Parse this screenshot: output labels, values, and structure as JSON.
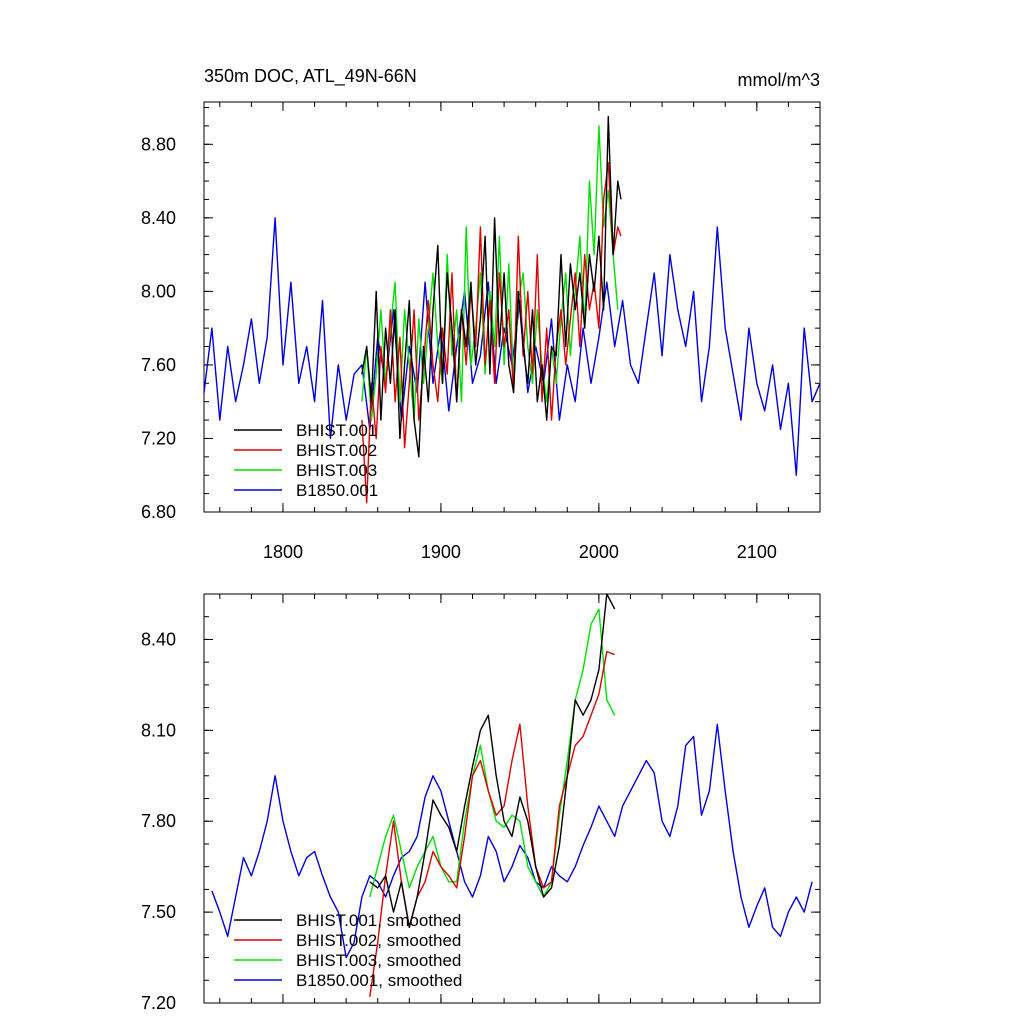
{
  "chart_data": [
    {
      "type": "line",
      "title": "350m DOC, ATL_49N-66N",
      "units": "mmol/m^3",
      "xlim": [
        1750,
        2140
      ],
      "ylim": [
        6.8,
        9.03
      ],
      "xticks": [
        1800,
        1900,
        2000,
        2100
      ],
      "xticklabels": [
        "1800",
        "1900",
        "2000",
        "2100"
      ],
      "yticks": [
        6.8,
        7.2,
        7.6,
        8.0,
        8.4,
        8.8
      ],
      "yticklabels": [
        "6.80",
        "7.20",
        "7.60",
        "8.00",
        "8.40",
        "8.80"
      ],
      "legend_position": "bottom-left",
      "series": [
        {
          "name": "BHIST.001",
          "color": "#000000",
          "x": [
            1850,
            1853,
            1856,
            1859,
            1862,
            1865,
            1868,
            1871,
            1874,
            1877,
            1880,
            1883,
            1886,
            1889,
            1892,
            1895,
            1898,
            1901,
            1904,
            1907,
            1910,
            1913,
            1916,
            1919,
            1922,
            1925,
            1928,
            1931,
            1934,
            1937,
            1940,
            1943,
            1946,
            1949,
            1952,
            1955,
            1958,
            1961,
            1964,
            1967,
            1970,
            1973,
            1976,
            1979,
            1982,
            1985,
            1988,
            1991,
            1994,
            1997,
            2000,
            2003,
            2006,
            2009,
            2012,
            2014
          ],
          "y": [
            7.55,
            7.7,
            7.4,
            8.0,
            7.3,
            7.8,
            7.5,
            7.9,
            7.2,
            7.6,
            7.95,
            7.3,
            7.1,
            7.7,
            7.4,
            7.9,
            8.25,
            7.5,
            8.1,
            7.8,
            7.4,
            7.9,
            7.7,
            8.05,
            7.6,
            7.85,
            8.3,
            7.55,
            8.4,
            7.7,
            8.1,
            7.6,
            7.45,
            8.0,
            7.7,
            7.5,
            7.9,
            7.4,
            7.6,
            7.3,
            7.7,
            7.65,
            8.2,
            7.7,
            8.15,
            7.9,
            8.1,
            7.8,
            8.2,
            8.0,
            8.3,
            7.9,
            8.95,
            8.2,
            8.6,
            8.5
          ]
        },
        {
          "name": "BHIST.002",
          "color": "#e00000",
          "x": [
            1850,
            1853,
            1856,
            1859,
            1862,
            1865,
            1868,
            1871,
            1874,
            1877,
            1880,
            1883,
            1886,
            1889,
            1892,
            1895,
            1898,
            1901,
            1904,
            1907,
            1910,
            1913,
            1916,
            1919,
            1922,
            1925,
            1928,
            1931,
            1934,
            1937,
            1940,
            1943,
            1946,
            1949,
            1952,
            1955,
            1958,
            1961,
            1964,
            1967,
            1970,
            1973,
            1976,
            1979,
            1982,
            1985,
            1988,
            1991,
            1994,
            1997,
            2000,
            2003,
            2006,
            2009,
            2012,
            2014
          ],
          "y": [
            7.3,
            6.85,
            7.5,
            7.2,
            7.7,
            7.45,
            7.9,
            7.4,
            7.75,
            7.15,
            7.5,
            7.9,
            7.3,
            7.6,
            7.95,
            7.6,
            7.4,
            7.8,
            7.55,
            8.1,
            7.4,
            7.9,
            7.6,
            8.0,
            7.7,
            8.35,
            7.6,
            7.95,
            7.5,
            8.1,
            7.7,
            7.9,
            7.45,
            8.3,
            7.65,
            8.0,
            7.55,
            8.2,
            7.4,
            7.8,
            7.3,
            7.7,
            7.9,
            7.6,
            7.85,
            8.1,
            7.7,
            8.2,
            7.9,
            8.05,
            7.8,
            8.5,
            8.7,
            8.2,
            8.35,
            8.3
          ]
        },
        {
          "name": "BHIST.003",
          "color": "#00e000",
          "x": [
            1850,
            1853,
            1856,
            1859,
            1862,
            1865,
            1868,
            1871,
            1874,
            1877,
            1880,
            1883,
            1886,
            1889,
            1892,
            1895,
            1898,
            1901,
            1904,
            1907,
            1910,
            1913,
            1916,
            1919,
            1922,
            1925,
            1928,
            1931,
            1934,
            1937,
            1940,
            1943,
            1946,
            1949,
            1952,
            1955,
            1958,
            1961,
            1964,
            1967,
            1970,
            1973,
            1976,
            1979,
            1982,
            1985,
            1988,
            1991,
            1994,
            1997,
            2000,
            2003,
            2006,
            2009,
            2012
          ],
          "y": [
            7.4,
            7.7,
            7.3,
            7.55,
            7.9,
            7.5,
            7.8,
            8.05,
            7.4,
            7.9,
            7.6,
            7.3,
            7.85,
            7.5,
            7.8,
            8.1,
            7.7,
            7.5,
            8.2,
            7.65,
            7.9,
            7.4,
            8.35,
            7.6,
            7.8,
            8.1,
            7.55,
            8.0,
            7.7,
            8.3,
            7.6,
            8.15,
            7.5,
            7.95,
            8.1,
            7.7,
            7.5,
            7.9,
            7.6,
            7.4,
            7.7,
            7.5,
            7.85,
            8.1,
            7.65,
            8.0,
            8.3,
            7.8,
            8.6,
            8.2,
            8.9,
            8.35,
            8.55,
            8.2,
            7.9
          ]
        },
        {
          "name": "B1850.001",
          "color": "#0000e0",
          "x": [
            1750,
            1755,
            1760,
            1765,
            1770,
            1775,
            1780,
            1785,
            1790,
            1795,
            1800,
            1805,
            1810,
            1815,
            1820,
            1825,
            1830,
            1835,
            1840,
            1845,
            1850,
            1855,
            1860,
            1865,
            1870,
            1875,
            1880,
            1885,
            1890,
            1895,
            1900,
            1905,
            1910,
            1915,
            1920,
            1925,
            1930,
            1935,
            1940,
            1945,
            1950,
            1955,
            1960,
            1965,
            1970,
            1975,
            1980,
            1985,
            1990,
            1995,
            2000,
            2005,
            2010,
            2015,
            2020,
            2025,
            2030,
            2035,
            2040,
            2045,
            2050,
            2055,
            2060,
            2065,
            2070,
            2075,
            2080,
            2085,
            2090,
            2095,
            2100,
            2105,
            2110,
            2115,
            2120,
            2125,
            2130,
            2135,
            2140
          ],
          "y": [
            7.45,
            7.8,
            7.3,
            7.7,
            7.4,
            7.6,
            7.85,
            7.5,
            7.75,
            8.4,
            7.6,
            8.05,
            7.5,
            7.7,
            7.4,
            7.95,
            7.2,
            7.6,
            7.3,
            7.55,
            7.6,
            7.25,
            7.75,
            7.5,
            7.9,
            7.3,
            7.7,
            7.45,
            8.05,
            7.5,
            7.8,
            7.35,
            7.7,
            8.0,
            7.5,
            7.65,
            8.05,
            7.5,
            7.8,
            7.6,
            7.95,
            7.45,
            7.7,
            7.5,
            7.85,
            7.3,
            7.6,
            7.4,
            7.8,
            7.5,
            7.75,
            8.05,
            7.7,
            7.95,
            7.6,
            7.5,
            7.8,
            8.1,
            7.65,
            8.2,
            7.9,
            7.7,
            8.0,
            7.4,
            7.7,
            8.35,
            7.8,
            7.55,
            7.3,
            7.8,
            7.5,
            7.35,
            7.6,
            7.25,
            7.5,
            7.0,
            7.8,
            7.4,
            7.5
          ]
        }
      ]
    },
    {
      "type": "line",
      "xlim": [
        1750,
        2140
      ],
      "ylim": [
        7.2,
        8.55
      ],
      "xticks": [
        1800,
        1900,
        2000,
        2100
      ],
      "yticks": [
        7.2,
        7.5,
        7.8,
        8.1,
        8.4
      ],
      "yticklabels": [
        "7.20",
        "7.50",
        "7.80",
        "8.10",
        "8.40"
      ],
      "legend_position": "bottom-left",
      "series": [
        {
          "name": "BHIST.001, smoothed",
          "color": "#000000",
          "x": [
            1855,
            1860,
            1865,
            1870,
            1875,
            1880,
            1885,
            1890,
            1895,
            1900,
            1905,
            1910,
            1915,
            1920,
            1925,
            1930,
            1935,
            1940,
            1945,
            1950,
            1955,
            1960,
            1965,
            1970,
            1975,
            1980,
            1985,
            1990,
            1995,
            2000,
            2005,
            2010
          ],
          "y": [
            7.6,
            7.58,
            7.62,
            7.5,
            7.6,
            7.45,
            7.55,
            7.7,
            7.87,
            7.82,
            7.78,
            7.7,
            7.85,
            7.98,
            8.1,
            8.15,
            7.95,
            7.8,
            7.75,
            7.88,
            7.8,
            7.65,
            7.55,
            7.58,
            7.72,
            7.95,
            8.2,
            8.15,
            8.2,
            8.3,
            8.55,
            8.5
          ]
        },
        {
          "name": "BHIST.002, smoothed",
          "color": "#e00000",
          "x": [
            1855,
            1860,
            1865,
            1870,
            1875,
            1880,
            1885,
            1890,
            1895,
            1900,
            1905,
            1910,
            1915,
            1920,
            1925,
            1930,
            1935,
            1940,
            1945,
            1950,
            1955,
            1960,
            1965,
            1970,
            1975,
            1980,
            1985,
            1990,
            1995,
            2000,
            2005,
            2010
          ],
          "y": [
            7.22,
            7.4,
            7.62,
            7.8,
            7.6,
            7.45,
            7.55,
            7.6,
            7.7,
            7.65,
            7.62,
            7.58,
            7.75,
            7.95,
            8.0,
            7.9,
            7.82,
            7.85,
            8.0,
            8.12,
            7.85,
            7.65,
            7.58,
            7.6,
            7.85,
            7.95,
            8.05,
            8.08,
            8.15,
            8.22,
            8.36,
            8.35
          ]
        },
        {
          "name": "BHIST.003, smoothed",
          "color": "#00e000",
          "x": [
            1855,
            1860,
            1865,
            1870,
            1875,
            1880,
            1885,
            1890,
            1895,
            1900,
            1905,
            1910,
            1915,
            1920,
            1925,
            1930,
            1935,
            1940,
            1945,
            1950,
            1955,
            1960,
            1965,
            1970,
            1975,
            1980,
            1985,
            1990,
            1995,
            2000,
            2005,
            2010
          ],
          "y": [
            7.55,
            7.65,
            7.75,
            7.82,
            7.7,
            7.58,
            7.65,
            7.7,
            7.75,
            7.65,
            7.6,
            7.6,
            7.8,
            7.95,
            8.05,
            7.9,
            7.8,
            7.78,
            7.82,
            7.8,
            7.65,
            7.6,
            7.55,
            7.6,
            7.82,
            8.0,
            8.2,
            8.3,
            8.45,
            8.5,
            8.2,
            8.15
          ]
        },
        {
          "name": "B1850.001, smoothed",
          "color": "#0000e0",
          "x": [
            1755,
            1760,
            1765,
            1770,
            1775,
            1780,
            1785,
            1790,
            1795,
            1800,
            1805,
            1810,
            1815,
            1820,
            1825,
            1830,
            1835,
            1840,
            1845,
            1850,
            1855,
            1860,
            1865,
            1870,
            1875,
            1880,
            1885,
            1890,
            1895,
            1900,
            1905,
            1910,
            1915,
            1920,
            1925,
            1930,
            1935,
            1940,
            1945,
            1950,
            1955,
            1960,
            1965,
            1970,
            1975,
            1980,
            1985,
            1990,
            1995,
            2000,
            2005,
            2010,
            2015,
            2020,
            2025,
            2030,
            2035,
            2040,
            2045,
            2050,
            2055,
            2060,
            2065,
            2070,
            2075,
            2080,
            2085,
            2090,
            2095,
            2100,
            2105,
            2110,
            2115,
            2120,
            2125,
            2130,
            2135
          ],
          "y": [
            7.57,
            7.5,
            7.42,
            7.55,
            7.68,
            7.62,
            7.7,
            7.8,
            7.95,
            7.8,
            7.7,
            7.62,
            7.68,
            7.7,
            7.62,
            7.55,
            7.5,
            7.35,
            7.4,
            7.55,
            7.62,
            7.6,
            7.55,
            7.62,
            7.68,
            7.7,
            7.75,
            7.88,
            7.95,
            7.9,
            7.8,
            7.7,
            7.6,
            7.55,
            7.62,
            7.75,
            7.7,
            7.6,
            7.65,
            7.72,
            7.68,
            7.6,
            7.58,
            7.65,
            7.62,
            7.6,
            7.65,
            7.72,
            7.78,
            7.85,
            7.8,
            7.75,
            7.85,
            7.9,
            7.95,
            8.0,
            7.96,
            7.8,
            7.75,
            7.85,
            8.05,
            8.08,
            7.82,
            7.9,
            8.12,
            7.9,
            7.7,
            7.55,
            7.45,
            7.52,
            7.58,
            7.45,
            7.42,
            7.5,
            7.55,
            7.5,
            7.6
          ]
        }
      ]
    }
  ]
}
